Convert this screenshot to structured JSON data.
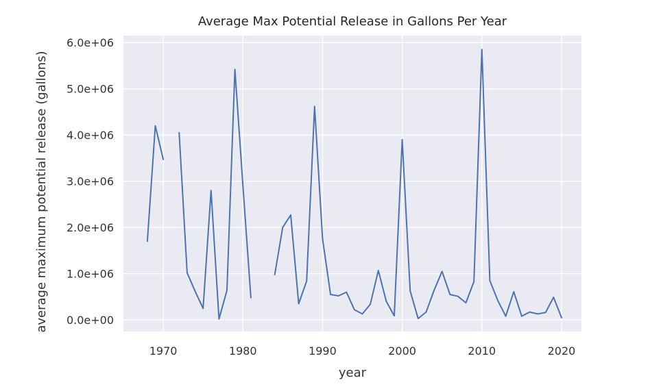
{
  "chart_data": {
    "type": "line",
    "title": "Average Max Potential Release in Gallons Per Year",
    "xlabel": "year",
    "ylabel": "average maximum potential release (gallons)",
    "xlim": [
      1965,
      2022.5
    ],
    "ylim": [
      -250000,
      6150000
    ],
    "x_ticks": [
      1970,
      1980,
      1990,
      2000,
      2010,
      2020
    ],
    "x_tick_labels": [
      "1970",
      "1980",
      "1990",
      "2000",
      "2010",
      "2020"
    ],
    "y_ticks": [
      0,
      1000000,
      2000000,
      3000000,
      4000000,
      5000000,
      6000000
    ],
    "y_tick_labels": [
      "0.0e+00",
      "1.0e+06",
      "2.0e+06",
      "3.0e+06",
      "4.0e+06",
      "5.0e+06",
      "6.0e+06"
    ],
    "grid": true,
    "background": "#eaeaf2",
    "line_color": "#4c72b0",
    "series": [
      {
        "segments": [
          [
            [
              1968,
              1700000
            ],
            [
              1969,
              4200000
            ],
            [
              1970,
              3470000
            ]
          ],
          [
            [
              1972,
              4050000
            ],
            [
              1973,
              1020000
            ],
            [
              1974,
              620000
            ],
            [
              1975,
              250000
            ],
            [
              1976,
              2800000
            ],
            [
              1977,
              20000
            ],
            [
              1978,
              640000
            ],
            [
              1979,
              5420000
            ],
            [
              1980,
              2900000
            ],
            [
              1981,
              480000
            ]
          ],
          [
            [
              1984,
              980000
            ],
            [
              1985,
              2000000
            ],
            [
              1986,
              2270000
            ],
            [
              1987,
              350000
            ],
            [
              1988,
              840000
            ],
            [
              1989,
              4620000
            ],
            [
              1990,
              1760000
            ],
            [
              1991,
              550000
            ],
            [
              1992,
              520000
            ],
            [
              1993,
              600000
            ],
            [
              1994,
              220000
            ],
            [
              1995,
              130000
            ],
            [
              1996,
              340000
            ],
            [
              1997,
              1070000
            ],
            [
              1998,
              400000
            ],
            [
              1999,
              90000
            ],
            [
              2000,
              3900000
            ],
            [
              2001,
              630000
            ],
            [
              2002,
              30000
            ],
            [
              2003,
              170000
            ],
            [
              2004,
              640000
            ],
            [
              2005,
              1050000
            ],
            [
              2006,
              550000
            ],
            [
              2007,
              510000
            ],
            [
              2008,
              370000
            ],
            [
              2009,
              830000
            ],
            [
              2010,
              5850000
            ],
            [
              2011,
              850000
            ],
            [
              2012,
              420000
            ],
            [
              2013,
              80000
            ],
            [
              2014,
              610000
            ],
            [
              2015,
              80000
            ],
            [
              2016,
              170000
            ],
            [
              2017,
              130000
            ],
            [
              2018,
              160000
            ],
            [
              2019,
              490000
            ],
            [
              2020,
              50000
            ]
          ]
        ]
      }
    ]
  }
}
